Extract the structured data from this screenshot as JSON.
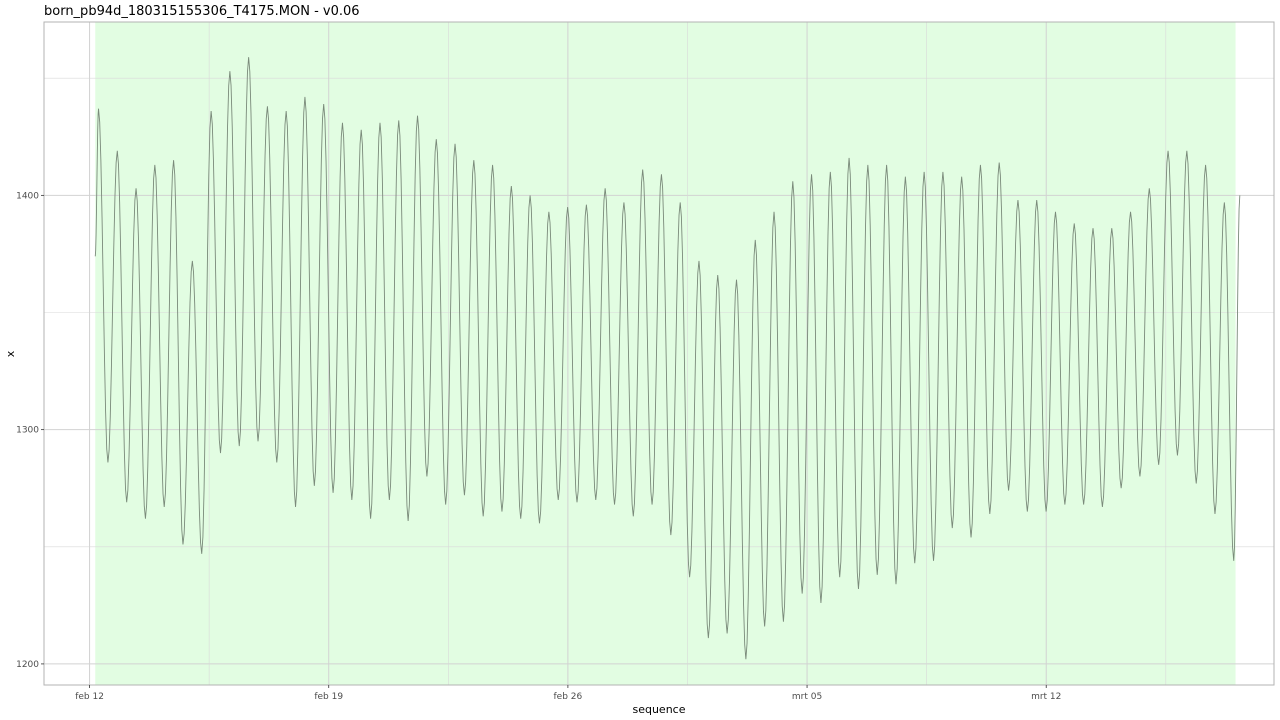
{
  "chart_data": {
    "type": "line",
    "title": "born_pb94d_180315155306_T4175.MON - v0.06",
    "xlabel": "sequence",
    "ylabel": "x",
    "x_start": "2018-02-12T04:00",
    "x_end": "2018-03-17T16:00",
    "xlim": [
      "2018-02-10T16:00",
      "2018-03-18T16:00"
    ],
    "x_ticks": [
      {
        "date": "2018-02-12",
        "label": "feb 12"
      },
      {
        "date": "2018-02-19",
        "label": "feb 19"
      },
      {
        "date": "2018-02-26",
        "label": "feb 26"
      },
      {
        "date": "2018-03-05",
        "label": "mrt 05"
      },
      {
        "date": "2018-03-12",
        "label": "mrt 12"
      }
    ],
    "ylim": [
      1191,
      1474
    ],
    "y_ticks": [
      1200,
      1300,
      1400
    ],
    "grid": true,
    "highlight_band": {
      "from": "2018-02-12T04:00",
      "to": "2018-03-17T13:00",
      "color": "#e2fde2"
    },
    "line_color": "#7a8a7a",
    "first_value": 1374,
    "last_value": 1400,
    "tidal_period_hours": 12.42,
    "series": [
      {
        "highs": [
          1437,
          1419,
          1403,
          1413,
          1415,
          1372,
          1436,
          1453,
          1459,
          1438,
          1436,
          1442,
          1439,
          1431,
          1428,
          1431,
          1432,
          1434,
          1424,
          1422,
          1415,
          1413,
          1404,
          1400,
          1393,
          1395,
          1396,
          1403,
          1397,
          1411,
          1409,
          1397,
          1372,
          1366,
          1364,
          1381,
          1393,
          1406,
          1409,
          1410,
          1416,
          1413,
          1413,
          1408,
          1410,
          1410,
          1408,
          1413,
          1414,
          1398,
          1398,
          1393,
          1388,
          1386,
          1386,
          1393,
          1403,
          1419,
          1419,
          1413,
          1397
        ],
        "lows": [
          1286,
          1269,
          1262,
          1267,
          1251,
          1247,
          1290,
          1293,
          1295,
          1286,
          1267,
          1276,
          1273,
          1270,
          1262,
          1270,
          1261,
          1280,
          1268,
          1272,
          1263,
          1265,
          1262,
          1260,
          1270,
          1269,
          1270,
          1268,
          1263,
          1268,
          1255,
          1237,
          1211,
          1213,
          1202,
          1216,
          1218,
          1230,
          1226,
          1237,
          1232,
          1238,
          1234,
          1243,
          1244,
          1258,
          1254,
          1264,
          1274,
          1265,
          1265,
          1268,
          1268,
          1267,
          1275,
          1280,
          1285,
          1289,
          1277,
          1264,
          1244
        ]
      }
    ]
  }
}
